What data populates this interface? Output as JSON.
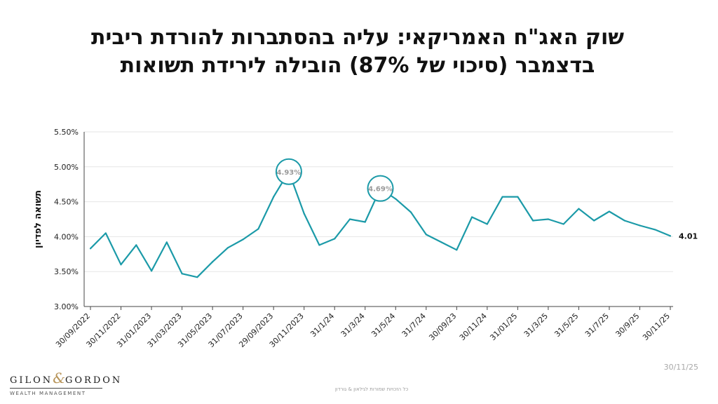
{
  "title": {
    "line1": "שוק האג\"ח האמריקאי: עליה בהסתברות להורדת ריבית",
    "line2": "בדצמבר (סיכוי של 87%) הובילה לירידת תשואות"
  },
  "date_stamp": "30/11/25",
  "footer_note": "כל הזכויות שמורות לגילאון & גורדון",
  "logo": {
    "name_left": "GILON",
    "amp": "&",
    "name_right": "GORDON",
    "sub": "WEALTH MANAGEMENT"
  },
  "colors": {
    "line": "#1b9aa8",
    "axis": "#444444",
    "grid": "#e6e6e6",
    "annotation_text": "#9a9a9a"
  },
  "chart_data": {
    "type": "line",
    "title": "",
    "xlabel": "",
    "ylabel": "תשואה לפדיון",
    "ylim": [
      3.0,
      5.5
    ],
    "yticks": [
      3.0,
      3.5,
      4.0,
      4.5,
      5.0,
      5.5
    ],
    "ytick_labels": [
      "3.00%",
      "3.50%",
      "4.00%",
      "4.50%",
      "5.00%",
      "5.50%"
    ],
    "xtick_labels": [
      "30/09/2022",
      "30/11/2022",
      "31/01/2023",
      "31/03/2023",
      "31/05/2023",
      "31/07/2023",
      "29/09/2023",
      "30/11/2023",
      "31/1/24",
      "31/3/24",
      "31/5/24",
      "31/7/24",
      "30/09/23",
      "30/11/24",
      "31/01/25",
      "31/3/25",
      "31/5/25",
      "31/7/25",
      "30/9/25",
      "30/11/25"
    ],
    "values": [
      3.83,
      4.05,
      3.6,
      3.88,
      3.51,
      3.92,
      3.47,
      3.42,
      3.64,
      3.84,
      3.96,
      4.11,
      4.57,
      4.93,
      4.33,
      3.88,
      3.97,
      4.25,
      4.21,
      4.69,
      4.54,
      4.35,
      4.03,
      3.92,
      3.81,
      4.28,
      4.18,
      4.57,
      4.57,
      4.23,
      4.25,
      4.18,
      4.4,
      4.23,
      4.36,
      4.23,
      4.16,
      4.1,
      4.01
    ],
    "annotations": [
      {
        "index": 13,
        "label": "4.93%"
      },
      {
        "index": 19,
        "label": "4.69%"
      }
    ],
    "last_value_label": "4.01"
  }
}
